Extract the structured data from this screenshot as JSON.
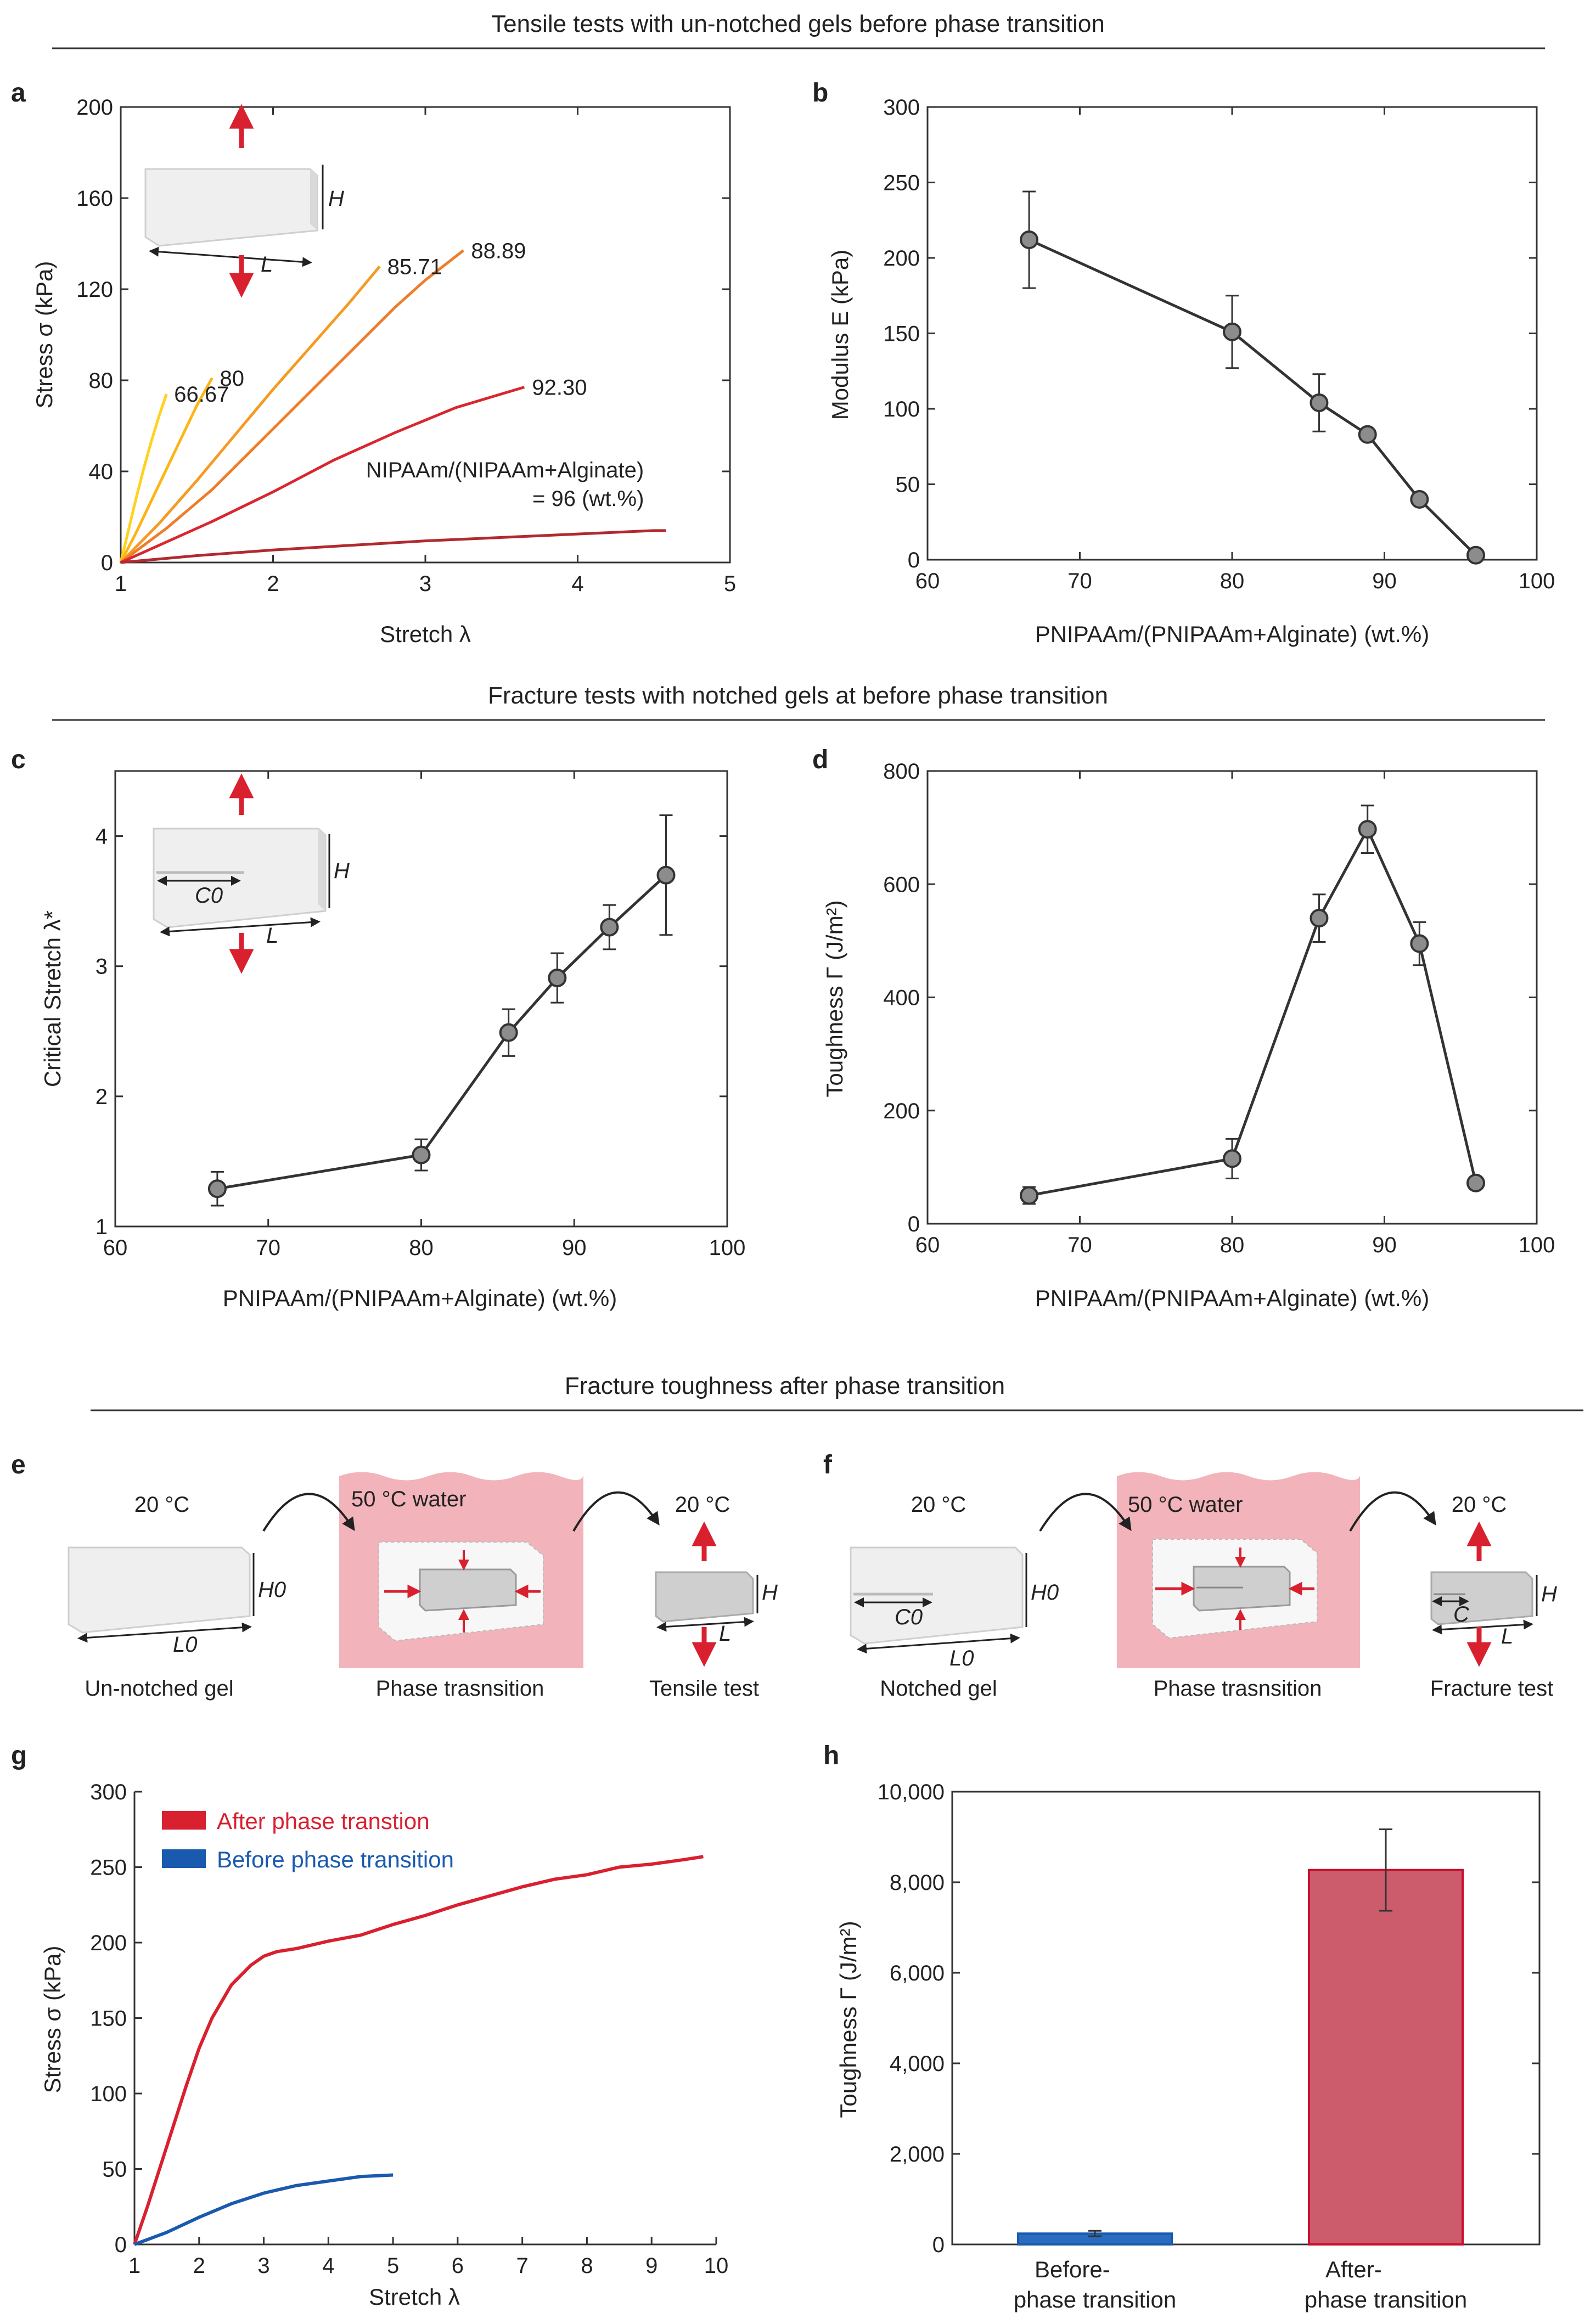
{
  "sections": [
    {
      "title": "Tensile tests with un-notched gels before phase transition"
    },
    {
      "title": "Fracture tests with notched gels at before phase transition"
    },
    {
      "title": "Fracture toughness after phase transition"
    }
  ],
  "colors": {
    "axis": "#333333",
    "series_line": "#333333",
    "marker": "#8c8c8c",
    "after": "#d9202f",
    "before": "#1a5aae",
    "bar_after": "#cc5c6c",
    "bar_after_edge": "#c8102e",
    "bar_before": "#2a6cc0",
    "water": "#f2b3ba",
    "curves_a": [
      "#ffd21f",
      "#fdb515",
      "#f59a23",
      "#ee7d2b",
      "#d9262f",
      "#b12a2f"
    ]
  },
  "chart_data": [
    {
      "id": "a",
      "panel_label": "a",
      "type": "line",
      "xlabel": "Stretch λ",
      "ylabel": "Stress σ (kPa)",
      "xlim": [
        1,
        5
      ],
      "ylim": [
        0,
        200
      ],
      "xticks": [
        "1",
        "2",
        "3",
        "4",
        "5"
      ],
      "yticks": [
        "0",
        "40",
        "80",
        "120",
        "160",
        "200"
      ],
      "annotation_line1": "NIPAAm/(NIPAAm+Alginate)",
      "annotation_line2": "= 96  (wt.%)",
      "inset_labels": {
        "h": "H",
        "l": "L"
      },
      "series": [
        {
          "name": "66.67",
          "x": [
            1.0,
            1.05,
            1.1,
            1.15,
            1.2,
            1.25,
            1.3
          ],
          "y": [
            0,
            14,
            28,
            41,
            53,
            64,
            74
          ]
        },
        {
          "name": "80",
          "x": [
            1.0,
            1.1,
            1.2,
            1.3,
            1.4,
            1.5,
            1.6
          ],
          "y": [
            0,
            13,
            27,
            41,
            55,
            69,
            81
          ]
        },
        {
          "name": "85.71",
          "x": [
            1.0,
            1.25,
            1.5,
            1.75,
            2.0,
            2.25,
            2.5,
            2.7
          ],
          "y": [
            0,
            17,
            36,
            56,
            76,
            95,
            114,
            130
          ]
        },
        {
          "name": "88.89",
          "x": [
            1.0,
            1.3,
            1.6,
            1.9,
            2.2,
            2.5,
            2.8,
            3.0,
            3.25
          ],
          "y": [
            0,
            15,
            32,
            52,
            72,
            92,
            112,
            124,
            137
          ]
        },
        {
          "name": "92.30",
          "x": [
            1.0,
            1.3,
            1.6,
            2.0,
            2.4,
            2.8,
            3.2,
            3.5,
            3.65
          ],
          "y": [
            0,
            9,
            18,
            31,
            45,
            57,
            68,
            74,
            77
          ]
        },
        {
          "name": "= 96  (wt.%)",
          "x": [
            1.0,
            1.5,
            2.0,
            2.5,
            3.0,
            3.5,
            4.0,
            4.5,
            4.58
          ],
          "y": [
            0,
            3,
            5.5,
            7.5,
            9.5,
            11,
            12.5,
            14,
            14
          ]
        }
      ]
    },
    {
      "id": "b",
      "panel_label": "b",
      "type": "line",
      "xlabel": "PNIPAAm/(PNIPAAm+Alginate) (wt.%)",
      "ylabel": "Modulus E (kPa)",
      "xlim": [
        60,
        100
      ],
      "ylim": [
        0,
        300
      ],
      "xticks": [
        "60",
        "70",
        "80",
        "90",
        "100"
      ],
      "yticks": [
        "0",
        "50",
        "100",
        "150",
        "200",
        "250",
        "300"
      ],
      "x": [
        66.67,
        80,
        85.71,
        88.89,
        92.3,
        96
      ],
      "values": [
        212,
        151,
        104,
        83,
        40,
        3
      ],
      "errors": [
        32,
        24,
        19,
        3,
        3,
        2
      ]
    },
    {
      "id": "c",
      "panel_label": "c",
      "type": "line",
      "xlabel": "PNIPAAm/(PNIPAAm+Alginate) (wt.%)",
      "ylabel": "Critical Stretch λ*",
      "xlim": [
        60,
        100
      ],
      "ylim": [
        1,
        4.5
      ],
      "yticks_values": [
        1,
        2,
        3,
        4
      ],
      "xticks": [
        "60",
        "70",
        "80",
        "90",
        "100"
      ],
      "yticks": [
        "1",
        "2",
        "3",
        "4"
      ],
      "inset_labels": {
        "h": "H",
        "l": "L",
        "c": "C0"
      },
      "x": [
        66.67,
        80,
        85.71,
        88.89,
        92.3,
        96
      ],
      "values": [
        1.29,
        1.55,
        2.49,
        2.91,
        3.3,
        3.7
      ],
      "errors": [
        0.13,
        0.12,
        0.18,
        0.19,
        0.17,
        0.46
      ]
    },
    {
      "id": "d",
      "panel_label": "d",
      "type": "line",
      "xlabel": "PNIPAAm/(PNIPAAm+Alginate) (wt.%)",
      "ylabel": "Toughness Γ (J/m²)",
      "xlim": [
        60,
        100
      ],
      "ylim": [
        0,
        800
      ],
      "xticks": [
        "60",
        "70",
        "80",
        "90",
        "100"
      ],
      "yticks": [
        "0",
        "200",
        "400",
        "600",
        "800"
      ],
      "x": [
        66.67,
        80,
        85.71,
        88.89,
        92.3,
        96
      ],
      "values": [
        50,
        115,
        540,
        697,
        495,
        72
      ],
      "errors": [
        15,
        35,
        42,
        42,
        38,
        8
      ]
    },
    {
      "id": "g",
      "panel_label": "g",
      "type": "line",
      "xlabel": "Stretch λ",
      "ylabel": "Stress σ (kPa)",
      "xlim": [
        1,
        10
      ],
      "ylim": [
        0,
        300
      ],
      "xticks": [
        "1",
        "2",
        "3",
        "4",
        "5",
        "6",
        "7",
        "8",
        "9",
        "10"
      ],
      "yticks": [
        "0",
        "50",
        "100",
        "150",
        "200",
        "250",
        "300"
      ],
      "series": [
        {
          "name": "After phase transtion",
          "x": [
            1.0,
            1.2,
            1.5,
            1.8,
            2.0,
            2.2,
            2.5,
            2.8,
            3.0,
            3.2,
            3.5,
            4.0,
            4.5,
            5.0,
            5.5,
            6.0,
            6.5,
            7.0,
            7.5,
            8.0,
            8.5,
            9.0,
            9.5,
            9.8
          ],
          "y": [
            0,
            25,
            65,
            105,
            130,
            150,
            172,
            185,
            191,
            194,
            196,
            201,
            205,
            212,
            218,
            225,
            231,
            237,
            242,
            245,
            250,
            252,
            255,
            257
          ]
        },
        {
          "name": "Before phase transition",
          "x": [
            1.0,
            1.5,
            2.0,
            2.5,
            3.0,
            3.5,
            4.0,
            4.5,
            5.0
          ],
          "y": [
            0,
            8,
            18,
            27,
            34,
            39,
            42,
            45,
            46
          ]
        }
      ]
    },
    {
      "id": "h",
      "panel_label": "h",
      "type": "bar",
      "xlabel": "",
      "ylabel": "Toughness Γ (J/m²)",
      "ylim": [
        0,
        10000
      ],
      "yticks": [
        "0",
        "2,000",
        "4,000",
        "6,000",
        "8,000",
        "10,000"
      ],
      "categories": [
        "Before-",
        "After-"
      ],
      "category_line2": [
        "phase transition",
        "phase transition"
      ],
      "values": [
        240,
        8270
      ],
      "errors": [
        60,
        900
      ]
    }
  ],
  "schematics": {
    "e": {
      "panel_label": "e",
      "left_temp": "20 °C",
      "water_label": "50 °C water",
      "right_temp": "20 °C",
      "dims": {
        "h0": "H0",
        "l0": "L0",
        "h": "H",
        "l": "L"
      },
      "captions": [
        "Un-notched gel",
        "Phase trasnsition",
        "Tensile test"
      ]
    },
    "f": {
      "panel_label": "f",
      "left_temp": "20 °C",
      "water_label": "50 °C water",
      "right_temp": "20 °C",
      "dims": {
        "h0": "H0",
        "l0": "L0",
        "c0": "C0",
        "h": "H",
        "l": "L",
        "c": "C"
      },
      "captions": [
        "Notched gel",
        "Phase trasnsition",
        "Fracture test"
      ]
    }
  }
}
